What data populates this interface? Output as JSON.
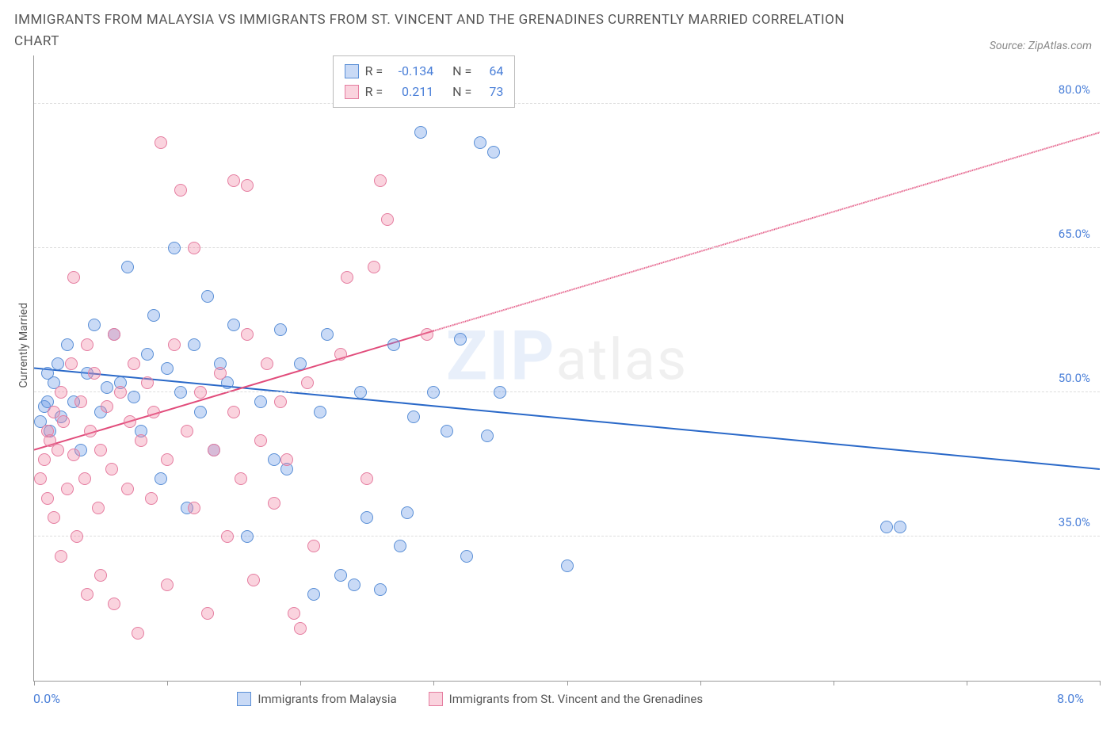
{
  "title": "IMMIGRANTS FROM MALAYSIA VS IMMIGRANTS FROM ST. VINCENT AND THE GRENADINES CURRENTLY MARRIED CORRELATION CHART",
  "source": "Source: ZipAtlas.com",
  "y_axis_label": "Currently Married",
  "watermark": {
    "zip": "ZIP",
    "atlas": "atlas"
  },
  "chart": {
    "type": "scatter",
    "background_color": "#ffffff",
    "grid_color": "#dddddd",
    "axis_color": "#999999",
    "text_color": "#555555",
    "tick_label_color": "#4a7fd8",
    "xlim": [
      0,
      8
    ],
    "ylim": [
      20,
      85
    ],
    "x_tick_positions": [
      0,
      1,
      2,
      3,
      4,
      5,
      6,
      7,
      8
    ],
    "x_min_label": "0.0%",
    "x_max_label": "8.0%",
    "y_ticks": [
      {
        "value": 35,
        "label": "35.0%"
      },
      {
        "value": 50,
        "label": "50.0%"
      },
      {
        "value": 65,
        "label": "65.0%"
      },
      {
        "value": 80,
        "label": "80.0%"
      }
    ],
    "marker_radius": 8,
    "marker_border_width": 1.5,
    "line_width": 2
  },
  "series": [
    {
      "name": "Immigrants from Malaysia",
      "key": "malaysia",
      "fill_color": "rgba(100,150,230,0.35)",
      "stroke_color": "#5a8fd6",
      "line_color": "#2968c8",
      "stats": {
        "R": "-0.134",
        "N": "64"
      },
      "trend": {
        "x1": 0,
        "y1": 52.5,
        "x2": 8,
        "y2": 42,
        "solid_until_x": 8
      },
      "points": [
        [
          0.05,
          47
        ],
        [
          0.08,
          48.5
        ],
        [
          0.1,
          52
        ],
        [
          0.1,
          49
        ],
        [
          0.12,
          46
        ],
        [
          0.15,
          51
        ],
        [
          0.18,
          53
        ],
        [
          0.2,
          47.5
        ],
        [
          0.25,
          55
        ],
        [
          0.3,
          49
        ],
        [
          0.35,
          44
        ],
        [
          0.4,
          52
        ],
        [
          0.45,
          57
        ],
        [
          0.5,
          48
        ],
        [
          0.55,
          50.5
        ],
        [
          0.6,
          56
        ],
        [
          0.65,
          51
        ],
        [
          0.7,
          63
        ],
        [
          0.75,
          49.5
        ],
        [
          0.8,
          46
        ],
        [
          0.85,
          54
        ],
        [
          0.9,
          58
        ],
        [
          0.95,
          41
        ],
        [
          1.0,
          52.5
        ],
        [
          1.05,
          65
        ],
        [
          1.1,
          50
        ],
        [
          1.15,
          38
        ],
        [
          1.2,
          55
        ],
        [
          1.25,
          48
        ],
        [
          1.3,
          60
        ],
        [
          1.35,
          44
        ],
        [
          1.4,
          53
        ],
        [
          1.45,
          51
        ],
        [
          1.5,
          57
        ],
        [
          1.6,
          35
        ],
        [
          1.7,
          49
        ],
        [
          1.8,
          43
        ],
        [
          1.85,
          56.5
        ],
        [
          1.9,
          42
        ],
        [
          2.0,
          53
        ],
        [
          2.1,
          29
        ],
        [
          2.15,
          48
        ],
        [
          2.2,
          56
        ],
        [
          2.3,
          31
        ],
        [
          2.4,
          30
        ],
        [
          2.45,
          50
        ],
        [
          2.5,
          37
        ],
        [
          2.6,
          29.5
        ],
        [
          2.7,
          55
        ],
        [
          2.75,
          34
        ],
        [
          2.8,
          37.5
        ],
        [
          2.85,
          47.5
        ],
        [
          2.9,
          77
        ],
        [
          3.0,
          50
        ],
        [
          3.1,
          46
        ],
        [
          3.2,
          55.5
        ],
        [
          3.25,
          33
        ],
        [
          3.35,
          76
        ],
        [
          3.4,
          45.5
        ],
        [
          3.45,
          75
        ],
        [
          3.5,
          50
        ],
        [
          4.0,
          32
        ],
        [
          6.4,
          36
        ],
        [
          6.5,
          36
        ]
      ]
    },
    {
      "name": "Immigrants from St. Vincent and the Grenadines",
      "key": "stvincent",
      "fill_color": "rgba(240,130,160,0.35)",
      "stroke_color": "#e57da0",
      "line_color": "#e14c7b",
      "stats": {
        "R": "0.211",
        "N": "73"
      },
      "trend": {
        "x1": 0,
        "y1": 44,
        "x2": 8,
        "y2": 77,
        "solid_until_x": 3.0
      },
      "points": [
        [
          0.05,
          41
        ],
        [
          0.08,
          43
        ],
        [
          0.1,
          46
        ],
        [
          0.1,
          39
        ],
        [
          0.12,
          45
        ],
        [
          0.15,
          48
        ],
        [
          0.15,
          37
        ],
        [
          0.18,
          44
        ],
        [
          0.2,
          50
        ],
        [
          0.2,
          33
        ],
        [
          0.22,
          47
        ],
        [
          0.25,
          40
        ],
        [
          0.28,
          53
        ],
        [
          0.3,
          43.5
        ],
        [
          0.3,
          62
        ],
        [
          0.32,
          35
        ],
        [
          0.35,
          49
        ],
        [
          0.38,
          41
        ],
        [
          0.4,
          55
        ],
        [
          0.4,
          29
        ],
        [
          0.42,
          46
        ],
        [
          0.45,
          52
        ],
        [
          0.48,
          38
        ],
        [
          0.5,
          44
        ],
        [
          0.5,
          31
        ],
        [
          0.55,
          48.5
        ],
        [
          0.58,
          42
        ],
        [
          0.6,
          56
        ],
        [
          0.6,
          28
        ],
        [
          0.65,
          50
        ],
        [
          0.7,
          40
        ],
        [
          0.72,
          47
        ],
        [
          0.75,
          53
        ],
        [
          0.78,
          25
        ],
        [
          0.8,
          45
        ],
        [
          0.85,
          51
        ],
        [
          0.88,
          39
        ],
        [
          0.9,
          48
        ],
        [
          0.95,
          76
        ],
        [
          1.0,
          43
        ],
        [
          1.0,
          30
        ],
        [
          1.05,
          55
        ],
        [
          1.1,
          71
        ],
        [
          1.15,
          46
        ],
        [
          1.2,
          38
        ],
        [
          1.2,
          65
        ],
        [
          1.25,
          50
        ],
        [
          1.3,
          27
        ],
        [
          1.35,
          44
        ],
        [
          1.4,
          52
        ],
        [
          1.45,
          35
        ],
        [
          1.5,
          48
        ],
        [
          1.5,
          72
        ],
        [
          1.55,
          41
        ],
        [
          1.6,
          56
        ],
        [
          1.6,
          71.5
        ],
        [
          1.65,
          30.5
        ],
        [
          1.7,
          45
        ],
        [
          1.75,
          53
        ],
        [
          1.8,
          38.5
        ],
        [
          1.85,
          49
        ],
        [
          1.9,
          43
        ],
        [
          1.95,
          27
        ],
        [
          2.0,
          25.5
        ],
        [
          2.05,
          51
        ],
        [
          2.1,
          34
        ],
        [
          2.3,
          54
        ],
        [
          2.35,
          62
        ],
        [
          2.5,
          41
        ],
        [
          2.55,
          63
        ],
        [
          2.6,
          72
        ],
        [
          2.65,
          68
        ],
        [
          2.95,
          56
        ]
      ]
    }
  ],
  "stats_box": {
    "rows": [
      {
        "series_key": "malaysia",
        "R_label": "R =",
        "N_label": "N ="
      },
      {
        "series_key": "stvincent",
        "R_label": "R =",
        "N_label": "N ="
      }
    ]
  },
  "legend_bottom": [
    {
      "series_key": "malaysia"
    },
    {
      "series_key": "stvincent"
    }
  ]
}
